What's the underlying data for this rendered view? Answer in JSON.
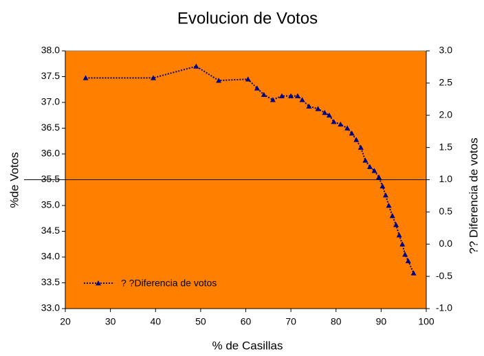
{
  "chart_data": {
    "type": "line",
    "title": "Evolucion de Votos",
    "x_label": "% de Casillas",
    "y_label": "%de Votos",
    "y2_label": "?? Diferencia de votos",
    "xlim": [
      20,
      100
    ],
    "xticks": [
      20,
      30,
      40,
      50,
      60,
      70,
      80,
      90,
      100
    ],
    "ylim": [
      33,
      38
    ],
    "yticks": [
      {
        "value": 33,
        "label": "33.0"
      },
      {
        "value": 33.5,
        "label": "33.5"
      },
      {
        "value": 34,
        "label": "34.0"
      },
      {
        "value": 34.5,
        "label": "34.5"
      },
      {
        "value": 35,
        "label": "35.0"
      },
      {
        "value": 35.5,
        "label": "35.5"
      },
      {
        "value": 36,
        "label": "36.0"
      },
      {
        "value": 36.5,
        "label": "36.5"
      },
      {
        "value": 37,
        "label": "37.0"
      },
      {
        "value": 37.5,
        "label": "37.5"
      },
      {
        "value": 38,
        "label": "38.0"
      }
    ],
    "y2lim": [
      -1,
      3
    ],
    "y2ticks": [
      {
        "value": -1,
        "label": "-1.0"
      },
      {
        "value": -0.5,
        "label": "-0.5"
      },
      {
        "value": 0,
        "label": "0.0"
      },
      {
        "value": 0.5,
        "label": "0.5"
      },
      {
        "value": 1,
        "label": "1.0"
      },
      {
        "value": 1.5,
        "label": "1.5"
      },
      {
        "value": 2,
        "label": "2.0"
      },
      {
        "value": 2.5,
        "label": "2.5"
      },
      {
        "value": 3,
        "label": "3.0"
      }
    ],
    "reference_line": {
      "axis": "y2",
      "value": 1
    },
    "background": "#ff8000",
    "legend": "lower left",
    "series": [
      {
        "name": "? ?Diferencia de votos",
        "color": "#000080",
        "axis": "y2",
        "x": [
          24.5,
          39.5,
          49,
          54,
          60.5,
          62.5,
          64,
          66,
          68,
          70,
          71.5,
          72.5,
          74,
          76,
          77.5,
          78.5,
          79.5,
          81,
          82.5,
          83.5,
          84.5,
          85.5,
          86.5,
          87.5,
          88.5,
          89.5,
          90.3,
          91,
          91.7,
          92.5,
          93.3,
          94,
          94.7,
          95.3,
          96,
          97.2
        ],
        "values": [
          2.58,
          2.58,
          2.76,
          2.54,
          2.56,
          2.42,
          2.32,
          2.24,
          2.3,
          2.3,
          2.3,
          2.24,
          2.14,
          2.1,
          2.04,
          2.0,
          1.9,
          1.86,
          1.8,
          1.72,
          1.62,
          1.5,
          1.3,
          1.2,
          1.14,
          1.04,
          0.9,
          0.76,
          0.6,
          0.44,
          0.3,
          0.14,
          0.0,
          -0.16,
          -0.26,
          -0.45
        ]
      }
    ]
  }
}
